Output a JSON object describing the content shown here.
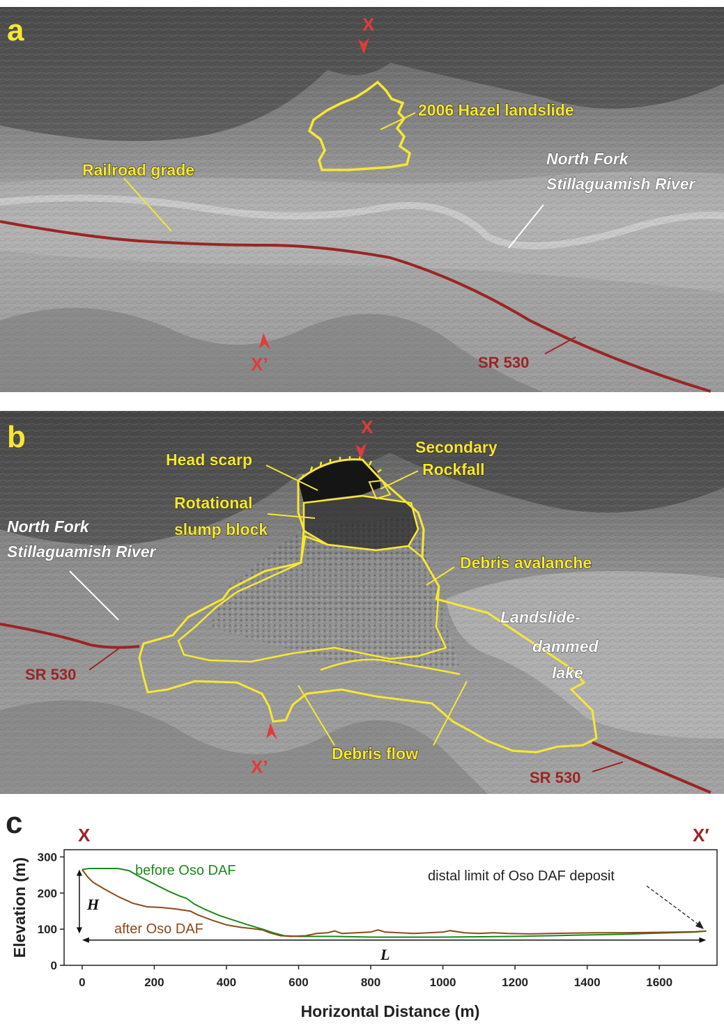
{
  "panels": {
    "a": {
      "letter": "a",
      "section_start": "X",
      "section_end": "X’",
      "labels": {
        "hazel": "2006 Hazel landslide",
        "railroad": "Railroad grade",
        "river_line1": "North Fork",
        "river_line2": "Stillaguamish River",
        "sr530": "SR 530"
      }
    },
    "b": {
      "letter": "b",
      "section_start": "X",
      "section_end": "X’",
      "labels": {
        "head_scarp": "Head scarp",
        "secondary_line1": "Secondary",
        "secondary_line2": "Rockfall",
        "rotational_line1": "Rotational",
        "rotational_line2": "slump block",
        "river_line1": "North Fork",
        "river_line2": "Stillaguamish River",
        "debris_avalanche": "Debris avalanche",
        "lake_line1": "Landslide-",
        "lake_line2": "dammed",
        "lake_line3": "lake",
        "sr530_left": "SR 530",
        "sr530_right": "SR 530",
        "debris_flow": "Debris flow"
      }
    },
    "c": {
      "letter": "c",
      "section_start": "X",
      "section_end": "X′"
    }
  },
  "colors": {
    "outline": "#f7e733",
    "road": "#9b2525",
    "section_marker": "#e23b3b",
    "before": "#1a8a1a",
    "after": "#8b4a1a"
  },
  "chart_data": {
    "type": "line",
    "xlabel": "Horizontal Distance (m)",
    "ylabel": "Elevation (m)",
    "xlim": [
      -50,
      1760
    ],
    "ylim": [
      0,
      320
    ],
    "xticks": [
      0,
      200,
      400,
      600,
      800,
      1000,
      1200,
      1400,
      1600
    ],
    "yticks": [
      0,
      100,
      200,
      300
    ],
    "grid": false,
    "series": [
      {
        "name": "before Oso DAF",
        "color": "#1a8a1a",
        "points": [
          [
            0,
            265
          ],
          [
            20,
            268
          ],
          [
            60,
            268
          ],
          [
            100,
            268
          ],
          [
            130,
            262
          ],
          [
            160,
            245
          ],
          [
            200,
            225
          ],
          [
            240,
            205
          ],
          [
            270,
            192
          ],
          [
            290,
            185
          ],
          [
            310,
            170
          ],
          [
            340,
            155
          ],
          [
            380,
            138
          ],
          [
            420,
            125
          ],
          [
            460,
            112
          ],
          [
            500,
            100
          ],
          [
            530,
            90
          ],
          [
            560,
            82
          ],
          [
            600,
            80
          ],
          [
            700,
            80
          ],
          [
            800,
            78
          ],
          [
            900,
            78
          ],
          [
            1000,
            78
          ],
          [
            1100,
            79
          ],
          [
            1200,
            80
          ],
          [
            1300,
            82
          ],
          [
            1400,
            84
          ],
          [
            1500,
            86
          ],
          [
            1600,
            89
          ],
          [
            1700,
            92
          ],
          [
            1730,
            95
          ]
        ]
      },
      {
        "name": "after Oso DAF",
        "color": "#8b4a1a",
        "points": [
          [
            0,
            265
          ],
          [
            15,
            245
          ],
          [
            30,
            230
          ],
          [
            60,
            212
          ],
          [
            100,
            190
          ],
          [
            140,
            172
          ],
          [
            180,
            162
          ],
          [
            220,
            160
          ],
          [
            260,
            156
          ],
          [
            300,
            150
          ],
          [
            320,
            140
          ],
          [
            360,
            125
          ],
          [
            400,
            112
          ],
          [
            440,
            105
          ],
          [
            470,
            102
          ],
          [
            500,
            98
          ],
          [
            520,
            90
          ],
          [
            550,
            82
          ],
          [
            580,
            80
          ],
          [
            620,
            82
          ],
          [
            650,
            88
          ],
          [
            680,
            90
          ],
          [
            700,
            95
          ],
          [
            720,
            88
          ],
          [
            760,
            90
          ],
          [
            800,
            92
          ],
          [
            820,
            98
          ],
          [
            840,
            92
          ],
          [
            880,
            90
          ],
          [
            920,
            88
          ],
          [
            960,
            90
          ],
          [
            1000,
            92
          ],
          [
            1020,
            96
          ],
          [
            1060,
            90
          ],
          [
            1100,
            88
          ],
          [
            1140,
            90
          ],
          [
            1180,
            88
          ],
          [
            1240,
            87
          ],
          [
            1300,
            88
          ],
          [
            1360,
            89
          ],
          [
            1420,
            90
          ],
          [
            1500,
            90
          ],
          [
            1580,
            91
          ],
          [
            1650,
            92
          ],
          [
            1700,
            93
          ],
          [
            1730,
            95
          ]
        ]
      }
    ],
    "annotations": {
      "before_label": "before Oso DAF",
      "after_label": "after Oso DAF",
      "distal_label": "distal limit of Oso DAF deposit",
      "H_label": "H",
      "L_label": "L"
    }
  }
}
